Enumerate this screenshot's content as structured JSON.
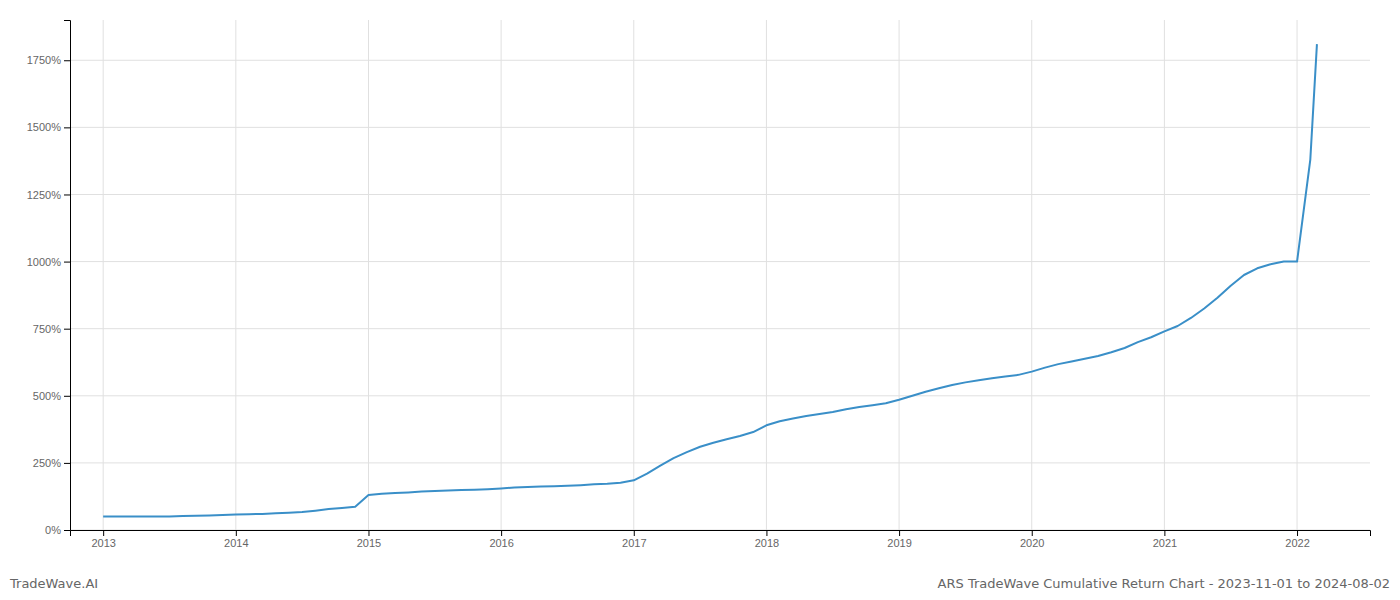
{
  "chart_data": {
    "type": "line",
    "title": "ARS TradeWave Cumulative Return Chart - 2023-11-01 to 2024-08-02",
    "annotations": [
      "TradeWave.AI"
    ],
    "color": "#3a8fc8",
    "grid": true,
    "x": [
      2013.0,
      2013.1,
      2013.2,
      2013.3,
      2013.4,
      2013.5,
      2013.6,
      2013.7,
      2013.8,
      2013.9,
      2014.0,
      2014.1,
      2014.2,
      2014.3,
      2014.4,
      2014.5,
      2014.6,
      2014.7,
      2014.8,
      2014.9,
      2015.0,
      2015.1,
      2015.2,
      2015.3,
      2015.4,
      2015.5,
      2015.6,
      2015.7,
      2015.8,
      2015.9,
      2016.0,
      2016.1,
      2016.2,
      2016.3,
      2016.4,
      2016.5,
      2016.6,
      2016.7,
      2016.8,
      2016.9,
      2017.0,
      2017.1,
      2017.2,
      2017.3,
      2017.4,
      2017.5,
      2017.6,
      2017.7,
      2017.8,
      2017.9,
      2018.0,
      2018.1,
      2018.2,
      2018.3,
      2018.4,
      2018.5,
      2018.6,
      2018.7,
      2018.8,
      2018.9,
      2019.0,
      2019.1,
      2019.2,
      2019.3,
      2019.4,
      2019.5,
      2019.6,
      2019.7,
      2019.8,
      2019.9,
      2020.0,
      2020.1,
      2020.2,
      2020.3,
      2020.4,
      2020.5,
      2020.6,
      2020.7,
      2020.8,
      2020.9,
      2021.0,
      2021.1,
      2021.2,
      2021.3,
      2021.4,
      2021.5,
      2021.6,
      2021.7,
      2021.8,
      2021.9,
      2022.0,
      2022.1,
      2022.15
    ],
    "values": [
      50,
      50,
      50,
      50,
      50,
      50,
      52,
      53,
      54,
      56,
      58,
      59,
      60,
      62,
      64,
      67,
      72,
      78,
      82,
      87,
      130,
      135,
      138,
      140,
      143,
      145,
      147,
      149,
      150,
      152,
      155,
      158,
      160,
      162,
      163,
      165,
      167,
      170,
      172,
      176,
      185,
      210,
      240,
      268,
      290,
      310,
      325,
      338,
      350,
      365,
      390,
      405,
      415,
      425,
      432,
      440,
      450,
      458,
      465,
      472,
      485,
      500,
      515,
      528,
      540,
      550,
      558,
      565,
      572,
      578,
      590,
      605,
      618,
      628,
      638,
      648,
      662,
      678,
      700,
      718,
      740,
      760,
      790,
      825,
      865,
      910,
      950,
      975,
      990,
      1000,
      1000,
      1380,
      1810
    ],
    "xlim": [
      2012.75,
      2022.55
    ],
    "xticks": [
      2013,
      2014,
      2015,
      2016,
      2017,
      2018,
      2019,
      2020,
      2021,
      2022
    ],
    "ylim": [
      0,
      1900
    ],
    "yticks": [
      {
        "value": 0,
        "label": "0%"
      },
      {
        "value": 250,
        "label": "250%"
      },
      {
        "value": 500,
        "label": "500%"
      },
      {
        "value": 750,
        "label": "750%"
      },
      {
        "value": 1000,
        "label": "1000%"
      },
      {
        "value": 1250,
        "label": "1250%"
      },
      {
        "value": 1500,
        "label": "1500%"
      },
      {
        "value": 1750,
        "label": "1750%"
      }
    ]
  }
}
